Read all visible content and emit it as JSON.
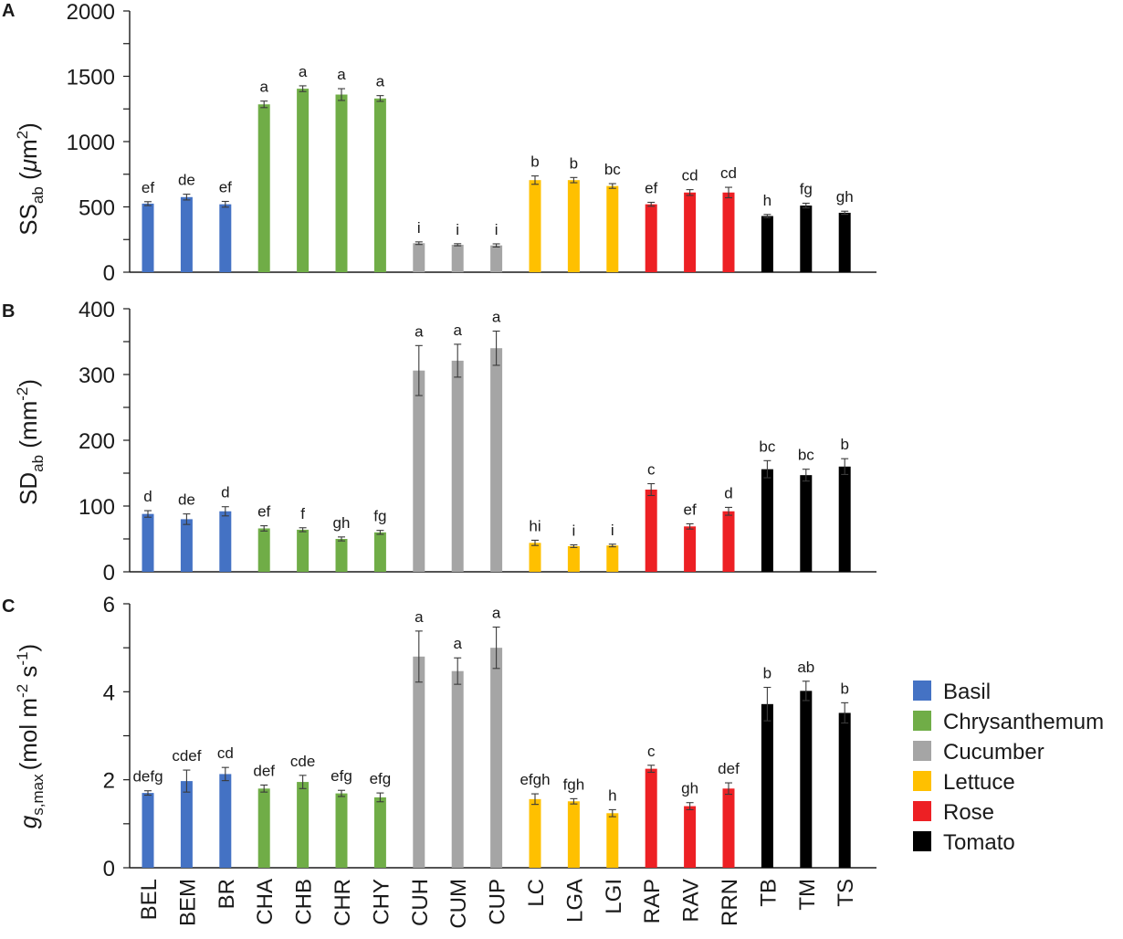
{
  "chart_data": [
    {
      "type": "bar",
      "panel": "A",
      "ylabel": "SSab (μm2)",
      "ylabel_main": "SS",
      "ylabel_sub": "ab",
      "ylabel_unit_open": " (",
      "ylabel_unit_mu": "μ",
      "ylabel_unit_m": "m",
      "ylabel_unit_sup": "2",
      "ylabel_unit_close": ")",
      "ylim": [
        0,
        2000
      ],
      "yticks": [
        0,
        500,
        1000,
        1500,
        2000
      ],
      "categories": [
        "BEL",
        "BEM",
        "BR",
        "CHA",
        "CHB",
        "CHR",
        "CHY",
        "CUH",
        "CUM",
        "CUP",
        "LC",
        "LGA",
        "LGI",
        "RAP",
        "RAV",
        "RRN",
        "TB",
        "TM",
        "TS"
      ],
      "groups": [
        "Basil",
        "Basil",
        "Basil",
        "Chrysanthemum",
        "Chrysanthemum",
        "Chrysanthemum",
        "Chrysanthemum",
        "Cucumber",
        "Cucumber",
        "Cucumber",
        "Lettuce",
        "Lettuce",
        "Lettuce",
        "Rose",
        "Rose",
        "Rose",
        "Tomato",
        "Tomato",
        "Tomato"
      ],
      "values": [
        525,
        575,
        520,
        1285,
        1405,
        1360,
        1330,
        222,
        210,
        205,
        705,
        705,
        660,
        520,
        610,
        610,
        430,
        510,
        455
      ],
      "errors": [
        15,
        22,
        22,
        25,
        22,
        45,
        22,
        10,
        8,
        12,
        32,
        20,
        18,
        15,
        22,
        40,
        12,
        18,
        12
      ],
      "letters": [
        "ef",
        "de",
        "ef",
        "a",
        "a",
        "a",
        "a",
        "i",
        "i",
        "i",
        "b",
        "b",
        "bc",
        "ef",
        "cd",
        "cd",
        "h",
        "fg",
        "gh"
      ]
    },
    {
      "type": "bar",
      "panel": "B",
      "ylabel": "SDab (mm-2)",
      "ylabel_main": "SD",
      "ylabel_sub": "ab",
      "ylabel_unit_open": " (mm",
      "ylabel_unit_sup": "-2",
      "ylabel_unit_close": ")",
      "ylim": [
        0,
        400
      ],
      "yticks": [
        0,
        100,
        200,
        300,
        400
      ],
      "categories": [
        "BEL",
        "BEM",
        "BR",
        "CHA",
        "CHB",
        "CHR",
        "CHY",
        "CUH",
        "CUM",
        "CUP",
        "LC",
        "LGA",
        "LGI",
        "RAP",
        "RAV",
        "RRN",
        "TB",
        "TM",
        "TS"
      ],
      "values": [
        88,
        80,
        92,
        66,
        64,
        50,
        60,
        306,
        321,
        340,
        44,
        39,
        40,
        125,
        69,
        92,
        156,
        147,
        160
      ],
      "errors": [
        5,
        8,
        7,
        4,
        3,
        3,
        3,
        38,
        25,
        26,
        4,
        2,
        2,
        9,
        4,
        6,
        13,
        9,
        12
      ],
      "letters": [
        "d",
        "de",
        "d",
        "ef",
        "f",
        "gh",
        "fg",
        "a",
        "a",
        "a",
        "hi",
        "i",
        "i",
        "c",
        "ef",
        "d",
        "bc",
        "bc",
        "b"
      ]
    },
    {
      "type": "bar",
      "panel": "C",
      "ylabel": "gs,max (mol m-2 s-1)",
      "ylabel_main": "g",
      "ylabel_sub": "s,max",
      "ylabel_unit_a": "(mol m",
      "ylabel_unit_sup1": "-2",
      "ylabel_unit_b": " s",
      "ylabel_unit_sup2": "-1",
      "ylabel_unit_close": ")",
      "ylim": [
        0,
        6
      ],
      "yticks": [
        0,
        2,
        4,
        6
      ],
      "categories": [
        "BEL",
        "BEM",
        "BR",
        "CHA",
        "CHB",
        "CHR",
        "CHY",
        "CUH",
        "CUM",
        "CUP",
        "LC",
        "LGA",
        "LGI",
        "RAP",
        "RAV",
        "RRN",
        "TB",
        "TM",
        "TS"
      ],
      "values": [
        1.7,
        1.97,
        2.13,
        1.8,
        1.95,
        1.69,
        1.6,
        4.8,
        4.47,
        5.0,
        1.56,
        1.51,
        1.24,
        2.25,
        1.4,
        1.8,
        3.72,
        4.02,
        3.52
      ],
      "errors": [
        0.05,
        0.25,
        0.15,
        0.08,
        0.15,
        0.07,
        0.1,
        0.58,
        0.3,
        0.47,
        0.12,
        0.06,
        0.08,
        0.08,
        0.08,
        0.13,
        0.38,
        0.22,
        0.23
      ],
      "letters": [
        "defg",
        "cdef",
        "cd",
        "def",
        "cde",
        "efg",
        "efg",
        "a",
        "a",
        "a",
        "efgh",
        "fgh",
        "h",
        "c",
        "gh",
        "def",
        "b",
        "ab",
        "b"
      ]
    }
  ],
  "legend": [
    {
      "label": "Basil",
      "color": "#4472c4"
    },
    {
      "label": "Chrysanthemum",
      "color": "#70ad47"
    },
    {
      "label": "Cucumber",
      "color": "#a5a5a5"
    },
    {
      "label": "Lettuce",
      "color": "#ffc000"
    },
    {
      "label": "Rose",
      "color": "#ed2024"
    },
    {
      "label": "Tomato",
      "color": "#000000"
    }
  ],
  "group_colors": {
    "Basil": "#4472c4",
    "Chrysanthemum": "#70ad47",
    "Cucumber": "#a5a5a5",
    "Lettuce": "#ffc000",
    "Rose": "#ed2024",
    "Tomato": "#000000"
  }
}
